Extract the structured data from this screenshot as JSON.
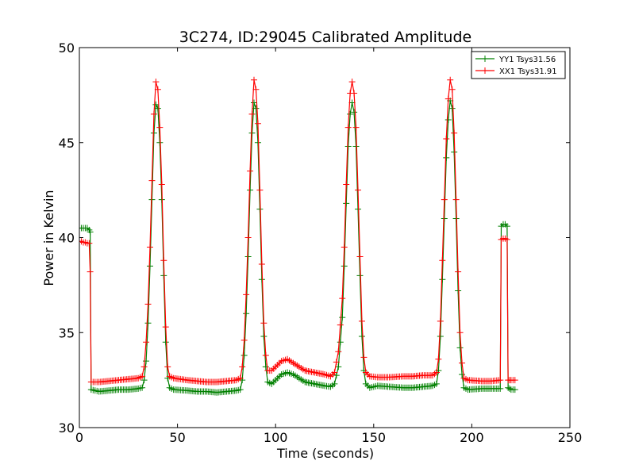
{
  "chart_data": {
    "type": "line",
    "title": "3C274, ID:29045 Calibrated Amplitude",
    "xlabel": "Time (seconds)",
    "ylabel": "Power in Kelvin",
    "xlim": [
      0,
      250
    ],
    "ylim": [
      30,
      50
    ],
    "xticks": [
      "0",
      "50",
      "100",
      "150",
      "200",
      "250"
    ],
    "yticks": [
      "30",
      "35",
      "40",
      "45",
      "50"
    ],
    "grid": false,
    "legend_position": "top-right",
    "marker": "plus",
    "series": [
      {
        "name": "YY1 Tsys31.56",
        "color": "#008000",
        "points": [
          [
            0,
            40.5
          ],
          [
            1,
            40.5
          ],
          [
            2,
            40.5
          ],
          [
            3,
            40.5
          ],
          [
            4,
            40.5
          ],
          [
            5,
            40.4
          ],
          [
            5.5,
            40.3
          ],
          [
            6,
            32.0
          ],
          [
            10,
            31.9
          ],
          [
            15,
            31.95
          ],
          [
            20,
            32.0
          ],
          [
            25,
            32.0
          ],
          [
            30,
            32.05
          ],
          [
            32,
            32.1
          ],
          [
            33,
            32.5
          ],
          [
            34,
            33.5
          ],
          [
            35,
            35.5
          ],
          [
            36,
            38.5
          ],
          [
            37,
            42.0
          ],
          [
            38,
            45.5
          ],
          [
            39,
            47.0
          ],
          [
            40,
            46.8
          ],
          [
            41,
            45.0
          ],
          [
            42,
            42.0
          ],
          [
            43,
            38.0
          ],
          [
            44,
            34.5
          ],
          [
            45,
            32.6
          ],
          [
            46,
            32.1
          ],
          [
            48,
            32.0
          ],
          [
            55,
            31.95
          ],
          [
            60,
            31.9
          ],
          [
            65,
            31.9
          ],
          [
            70,
            31.85
          ],
          [
            75,
            31.9
          ],
          [
            80,
            31.95
          ],
          [
            82,
            32.0
          ],
          [
            83,
            32.5
          ],
          [
            84,
            33.8
          ],
          [
            85,
            36.0
          ],
          [
            86,
            39.0
          ],
          [
            87,
            42.5
          ],
          [
            88,
            45.5
          ],
          [
            89,
            47.1
          ],
          [
            90,
            46.8
          ],
          [
            91,
            45.0
          ],
          [
            92,
            41.5
          ],
          [
            93,
            37.8
          ],
          [
            94,
            34.8
          ],
          [
            95,
            33.2
          ],
          [
            96,
            32.4
          ],
          [
            98,
            32.3
          ],
          [
            100,
            32.5
          ],
          [
            103,
            32.8
          ],
          [
            106,
            32.9
          ],
          [
            109,
            32.8
          ],
          [
            112,
            32.6
          ],
          [
            115,
            32.4
          ],
          [
            120,
            32.3
          ],
          [
            125,
            32.2
          ],
          [
            128,
            32.15
          ],
          [
            130,
            32.3
          ],
          [
            132,
            33.2
          ],
          [
            134,
            35.8
          ],
          [
            135,
            38.5
          ],
          [
            136,
            41.8
          ],
          [
            137,
            44.8
          ],
          [
            138,
            46.5
          ],
          [
            139,
            47.1
          ],
          [
            140,
            46.6
          ],
          [
            141,
            44.8
          ],
          [
            142,
            41.5
          ],
          [
            143,
            38.0
          ],
          [
            144,
            34.8
          ],
          [
            145,
            33.0
          ],
          [
            146,
            32.3
          ],
          [
            148,
            32.1
          ],
          [
            152,
            32.2
          ],
          [
            158,
            32.15
          ],
          [
            165,
            32.1
          ],
          [
            170,
            32.1
          ],
          [
            175,
            32.15
          ],
          [
            180,
            32.2
          ],
          [
            182,
            32.3
          ],
          [
            183,
            33.0
          ],
          [
            184,
            34.8
          ],
          [
            185,
            37.8
          ],
          [
            186,
            41.0
          ],
          [
            187,
            44.2
          ],
          [
            188,
            46.2
          ],
          [
            189,
            47.2
          ],
          [
            190,
            46.8
          ],
          [
            191,
            44.5
          ],
          [
            192,
            41.0
          ],
          [
            193,
            37.2
          ],
          [
            194,
            34.2
          ],
          [
            195,
            32.8
          ],
          [
            196,
            32.1
          ],
          [
            198,
            32.0
          ],
          [
            205,
            32.05
          ],
          [
            210,
            32.05
          ],
          [
            214.5,
            32.05
          ],
          [
            215,
            40.6
          ],
          [
            216,
            40.7
          ],
          [
            217,
            40.7
          ],
          [
            218,
            40.6
          ],
          [
            218.5,
            32.1
          ],
          [
            220,
            32.0
          ],
          [
            221,
            32.0
          ],
          [
            222,
            32.0
          ]
        ]
      },
      {
        "name": "XX1 Tsys31.91",
        "color": "#ff0000",
        "points": [
          [
            0,
            39.8
          ],
          [
            1,
            39.8
          ],
          [
            2,
            39.75
          ],
          [
            3,
            39.75
          ],
          [
            4,
            39.7
          ],
          [
            5,
            39.7
          ],
          [
            5.5,
            38.2
          ],
          [
            6,
            32.4
          ],
          [
            10,
            32.4
          ],
          [
            15,
            32.45
          ],
          [
            20,
            32.5
          ],
          [
            25,
            32.55
          ],
          [
            30,
            32.6
          ],
          [
            32,
            32.7
          ],
          [
            33,
            33.2
          ],
          [
            34,
            34.5
          ],
          [
            35,
            36.5
          ],
          [
            36,
            39.5
          ],
          [
            37,
            43.0
          ],
          [
            38,
            46.5
          ],
          [
            39,
            48.2
          ],
          [
            40,
            47.8
          ],
          [
            41,
            45.8
          ],
          [
            42,
            42.8
          ],
          [
            43,
            38.8
          ],
          [
            44,
            35.3
          ],
          [
            45,
            33.2
          ],
          [
            46,
            32.7
          ],
          [
            48,
            32.6
          ],
          [
            55,
            32.5
          ],
          [
            60,
            32.45
          ],
          [
            65,
            32.4
          ],
          [
            70,
            32.4
          ],
          [
            75,
            32.45
          ],
          [
            80,
            32.5
          ],
          [
            82,
            32.6
          ],
          [
            83,
            33.2
          ],
          [
            84,
            34.6
          ],
          [
            85,
            37.0
          ],
          [
            86,
            40.0
          ],
          [
            87,
            43.5
          ],
          [
            88,
            46.5
          ],
          [
            89,
            48.3
          ],
          [
            90,
            47.8
          ],
          [
            91,
            46.0
          ],
          [
            92,
            42.5
          ],
          [
            93,
            38.6
          ],
          [
            94,
            35.5
          ],
          [
            95,
            33.8
          ],
          [
            96,
            33.0
          ],
          [
            98,
            33.0
          ],
          [
            100,
            33.2
          ],
          [
            103,
            33.5
          ],
          [
            106,
            33.6
          ],
          [
            109,
            33.4
          ],
          [
            112,
            33.2
          ],
          [
            115,
            33.0
          ],
          [
            120,
            32.9
          ],
          [
            125,
            32.8
          ],
          [
            128,
            32.7
          ],
          [
            130,
            32.9
          ],
          [
            132,
            34.0
          ],
          [
            134,
            36.8
          ],
          [
            135,
            39.5
          ],
          [
            136,
            42.8
          ],
          [
            137,
            45.8
          ],
          [
            138,
            47.6
          ],
          [
            139,
            48.2
          ],
          [
            140,
            47.6
          ],
          [
            141,
            45.8
          ],
          [
            142,
            42.5
          ],
          [
            143,
            39.0
          ],
          [
            144,
            35.6
          ],
          [
            145,
            33.7
          ],
          [
            146,
            32.9
          ],
          [
            148,
            32.7
          ],
          [
            152,
            32.65
          ],
          [
            158,
            32.65
          ],
          [
            165,
            32.7
          ],
          [
            170,
            32.7
          ],
          [
            175,
            32.75
          ],
          [
            180,
            32.75
          ],
          [
            182,
            32.9
          ],
          [
            183,
            33.6
          ],
          [
            184,
            35.6
          ],
          [
            185,
            38.8
          ],
          [
            186,
            42.0
          ],
          [
            187,
            45.2
          ],
          [
            188,
            47.3
          ],
          [
            189,
            48.3
          ],
          [
            190,
            47.8
          ],
          [
            191,
            45.5
          ],
          [
            192,
            42.0
          ],
          [
            193,
            38.2
          ],
          [
            194,
            35.0
          ],
          [
            195,
            33.4
          ],
          [
            196,
            32.6
          ],
          [
            198,
            32.5
          ],
          [
            205,
            32.45
          ],
          [
            210,
            32.45
          ],
          [
            214.5,
            32.5
          ],
          [
            215,
            39.9
          ],
          [
            216,
            39.95
          ],
          [
            217,
            39.95
          ],
          [
            218,
            39.9
          ],
          [
            218.5,
            32.5
          ],
          [
            220,
            32.5
          ],
          [
            221,
            32.5
          ],
          [
            222,
            32.5
          ]
        ]
      }
    ]
  }
}
